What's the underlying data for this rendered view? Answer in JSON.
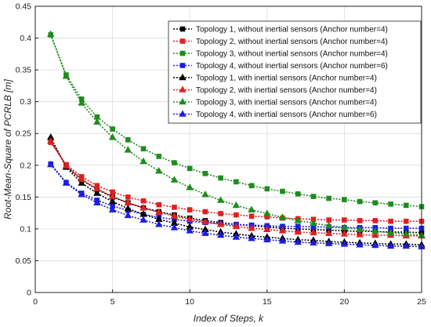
{
  "chart_data": {
    "type": "line",
    "title": "",
    "xlabel": "Index of Steps, k",
    "ylabel": "Root-Mean-Square of PCRLB [m]",
    "xlim": [
      0,
      25
    ],
    "ylim": [
      0,
      0.45
    ],
    "xticks": [
      "0",
      "5",
      "10",
      "15",
      "20",
      "25"
    ],
    "yticks": [
      "0",
      "0.05",
      "0.1",
      "0.15",
      "0.2",
      "0.25",
      "0.3",
      "0.35",
      "0.4",
      "0.45"
    ],
    "grid": true,
    "legend_position": "top-right",
    "x": [
      1,
      2,
      3,
      4,
      5,
      6,
      7,
      8,
      9,
      10,
      11,
      12,
      13,
      14,
      15,
      16,
      17,
      18,
      19,
      20,
      21,
      22,
      23,
      24,
      25
    ],
    "series": [
      {
        "name": "Topology 1, without inertial sensors (Anchor number=4)",
        "color": "#000000",
        "marker": "square",
        "values": [
          0.24,
          0.199,
          0.177,
          0.162,
          0.15,
          0.141,
          0.133,
          0.127,
          0.122,
          0.117,
          0.113,
          0.11,
          0.107,
          0.105,
          0.103,
          0.101,
          0.1,
          0.099,
          0.098,
          0.097,
          0.096,
          0.096,
          0.095,
          0.095,
          0.094
        ]
      },
      {
        "name": "Topology 2, without inertial sensors (Anchor number=4)",
        "color": "#e02020",
        "marker": "square",
        "values": [
          0.236,
          0.201,
          0.182,
          0.168,
          0.158,
          0.15,
          0.144,
          0.138,
          0.134,
          0.13,
          0.127,
          0.124,
          0.122,
          0.12,
          0.119,
          0.117,
          0.116,
          0.115,
          0.114,
          0.114,
          0.113,
          0.113,
          0.112,
          0.112,
          0.112
        ]
      },
      {
        "name": "Topology 3, without inertial sensors (Anchor number=4)",
        "color": "#1e8c1e",
        "marker": "square",
        "values": [
          0.405,
          0.342,
          0.304,
          0.276,
          0.257,
          0.24,
          0.226,
          0.214,
          0.204,
          0.195,
          0.187,
          0.18,
          0.174,
          0.168,
          0.163,
          0.159,
          0.155,
          0.151,
          0.148,
          0.146,
          0.143,
          0.141,
          0.139,
          0.137,
          0.135
        ]
      },
      {
        "name": "Topology 4, without inertial sensors (Anchor number=6)",
        "color": "#1e1ee0",
        "marker": "square",
        "values": [
          0.202,
          0.173,
          0.156,
          0.145,
          0.136,
          0.129,
          0.123,
          0.118,
          0.115,
          0.112,
          0.11,
          0.108,
          0.107,
          0.106,
          0.105,
          0.104,
          0.104,
          0.103,
          0.103,
          0.102,
          0.102,
          0.102,
          0.101,
          0.101,
          0.101
        ]
      },
      {
        "name": "Topology 1, with inertial sensors (Anchor number=4)",
        "color": "#000000",
        "marker": "triangle",
        "values": [
          0.244,
          0.197,
          0.172,
          0.156,
          0.143,
          0.132,
          0.123,
          0.115,
          0.109,
          0.103,
          0.099,
          0.095,
          0.092,
          0.089,
          0.087,
          0.085,
          0.083,
          0.082,
          0.08,
          0.079,
          0.078,
          0.077,
          0.076,
          0.076,
          0.075
        ]
      },
      {
        "name": "Topology 2, with inertial sensors (Anchor number=4)",
        "color": "#e02020",
        "marker": "triangle",
        "values": [
          0.238,
          0.199,
          0.178,
          0.163,
          0.151,
          0.141,
          0.133,
          0.126,
          0.12,
          0.115,
          0.111,
          0.107,
          0.104,
          0.101,
          0.099,
          0.097,
          0.095,
          0.094,
          0.093,
          0.092,
          0.091,
          0.09,
          0.09,
          0.089,
          0.089
        ]
      },
      {
        "name": "Topology 3, with inertial sensors (Anchor number=4)",
        "color": "#1e8c1e",
        "marker": "triangle",
        "values": [
          0.406,
          0.34,
          0.298,
          0.268,
          0.244,
          0.224,
          0.206,
          0.191,
          0.177,
          0.165,
          0.154,
          0.145,
          0.137,
          0.13,
          0.124,
          0.118,
          0.113,
          0.109,
          0.105,
          0.102,
          0.099,
          0.096,
          0.094,
          0.092,
          0.09
        ]
      },
      {
        "name": "Topology 4, with inertial sensors (Anchor number=6)",
        "color": "#1e1ee0",
        "marker": "triangle",
        "values": [
          0.201,
          0.172,
          0.154,
          0.141,
          0.13,
          0.121,
          0.114,
          0.107,
          0.102,
          0.097,
          0.093,
          0.09,
          0.087,
          0.085,
          0.083,
          0.081,
          0.079,
          0.078,
          0.077,
          0.076,
          0.075,
          0.074,
          0.073,
          0.073,
          0.072
        ]
      }
    ]
  }
}
